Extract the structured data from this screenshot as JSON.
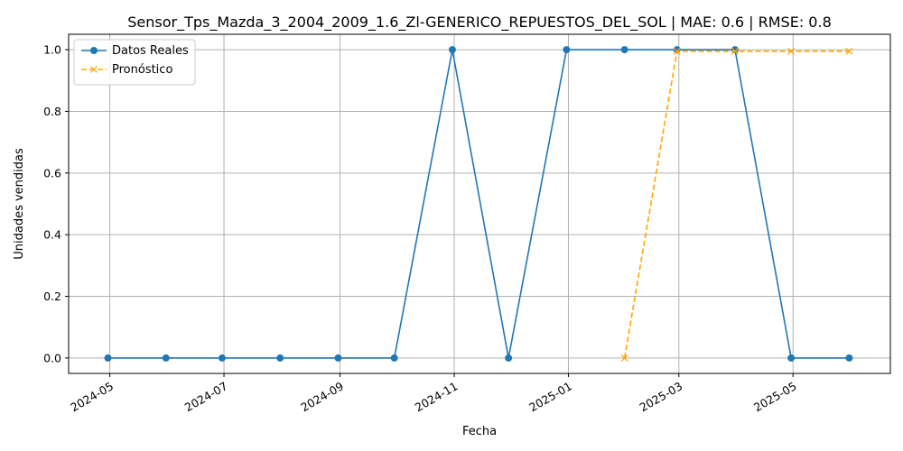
{
  "chart_data": {
    "type": "line",
    "title": "Sensor_Tps_Mazda_3_2004_2009_1.6_Zl-GENERICO_REPUESTOS_DEL_SOL | MAE: 0.6 | RMSE: 0.8",
    "xlabel": "Fecha",
    "ylabel": "Unidades vendidas",
    "x_ticks": [
      "2024-05",
      "2024-07",
      "2024-09",
      "2024-11",
      "2025-01",
      "2025-03",
      "2025-05"
    ],
    "y_ticks": [
      "0.0",
      "0.2",
      "0.4",
      "0.6",
      "0.8",
      "1.0"
    ],
    "ylim": [
      -0.05,
      1.05
    ],
    "xlim": [
      "2024-04-09",
      "2025-06-22"
    ],
    "grid": true,
    "legend_position": "upper-left",
    "series": [
      {
        "name": "Datos Reales",
        "color": "#1f77b4",
        "style": "solid",
        "marker": "circle",
        "x": [
          "2024-04-30",
          "2024-05-31",
          "2024-06-30",
          "2024-07-31",
          "2024-08-31",
          "2024-09-30",
          "2024-10-31",
          "2024-11-30",
          "2024-12-31",
          "2025-01-31",
          "2025-02-28",
          "2025-03-31",
          "2025-04-30",
          "2025-05-31"
        ],
        "values": [
          0,
          0,
          0,
          0,
          0,
          0,
          1,
          0,
          1,
          1,
          1,
          1,
          0,
          0
        ]
      },
      {
        "name": "Pronóstico",
        "color": "#ffa500",
        "style": "dashed",
        "marker": "x",
        "x": [
          "2025-01-31",
          "2025-02-28",
          "2025-03-31",
          "2025-04-30",
          "2025-05-31"
        ],
        "values": [
          0.0,
          0.995,
          0.995,
          0.995,
          0.995
        ]
      }
    ]
  }
}
